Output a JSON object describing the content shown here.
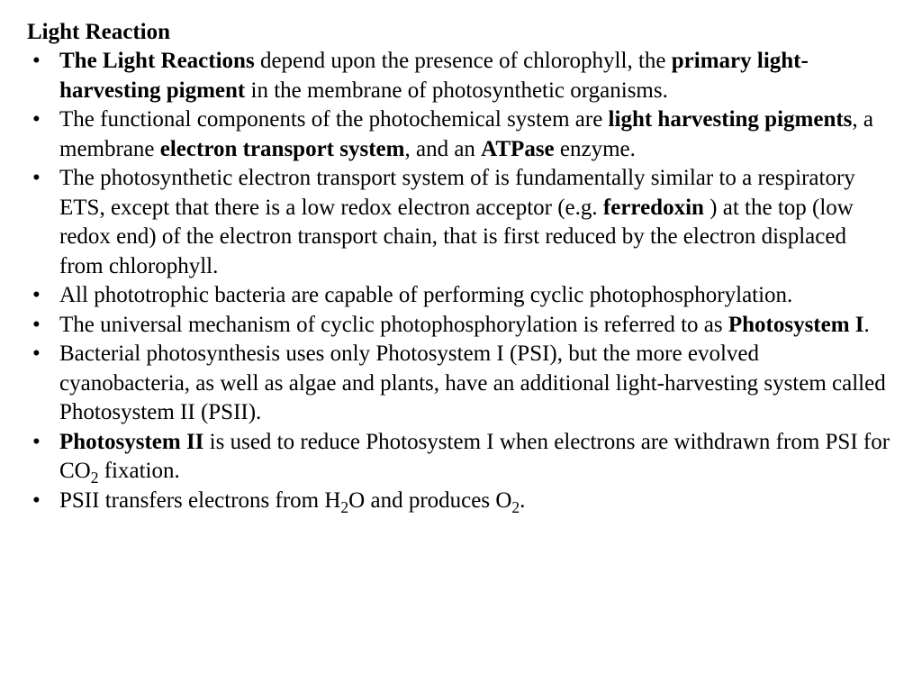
{
  "page": {
    "title": "Light Reaction",
    "font_family": "Times New Roman",
    "title_fontsize": 25,
    "body_fontsize": 25,
    "text_color": "#000000",
    "background_color": "#ffffff"
  },
  "bullets": [
    {
      "segments": [
        {
          "text": "The Light Reactions",
          "bold": true
        },
        {
          "text": " depend upon the presence of chlorophyll, the "
        },
        {
          "text": "primary light-harvesting pigment",
          "bold": true
        },
        {
          "text": " in the membrane of photosynthetic organisms."
        }
      ]
    },
    {
      "segments": [
        {
          "text": "The functional components of the photochemical system are "
        },
        {
          "text": "light harvesting pigments",
          "bold": true
        },
        {
          "text": ", a membrane "
        },
        {
          "text": "electron transport system",
          "bold": true
        },
        {
          "text": ", and an "
        },
        {
          "text": "ATPase",
          "bold": true
        },
        {
          "text": " enzyme."
        }
      ]
    },
    {
      "segments": [
        {
          "text": "The photosynthetic electron transport system of is fundamentally similar to a respiratory ETS, except that there is a low redox electron acceptor (e.g. "
        },
        {
          "text": "ferredoxin",
          "bold": true
        },
        {
          "text": " ) at the top (low redox end) of the electron transport chain, that is first reduced by the electron displaced from chlorophyll."
        }
      ]
    },
    {
      "segments": [
        {
          "text": "All phototrophic bacteria are capable of performing cyclic photophosphorylation."
        }
      ]
    },
    {
      "segments": [
        {
          "text": "The universal mechanism of cyclic photophosphorylation is referred to as "
        },
        {
          "text": "Photosystem I",
          "bold": true
        },
        {
          "text": "."
        }
      ]
    },
    {
      "segments": [
        {
          "text": " Bacterial photosynthesis uses only Photosystem I (PSI), but the more evolved cyanobacteria, as well as algae and plants, have an additional light-harvesting system called Photosystem II (PSII)."
        }
      ]
    },
    {
      "segments": [
        {
          "text": "Photosystem II",
          "bold": true
        },
        {
          "text": " is used to reduce Photosystem I when electrons are withdrawn from PSI for CO"
        },
        {
          "text": "2",
          "sub": true
        },
        {
          "text": " fixation."
        }
      ]
    },
    {
      "segments": [
        {
          "text": "PSII transfers electrons from H"
        },
        {
          "text": "2",
          "sub": true
        },
        {
          "text": "O and produces O"
        },
        {
          "text": "2",
          "sub": true
        },
        {
          "text": "."
        }
      ]
    }
  ]
}
